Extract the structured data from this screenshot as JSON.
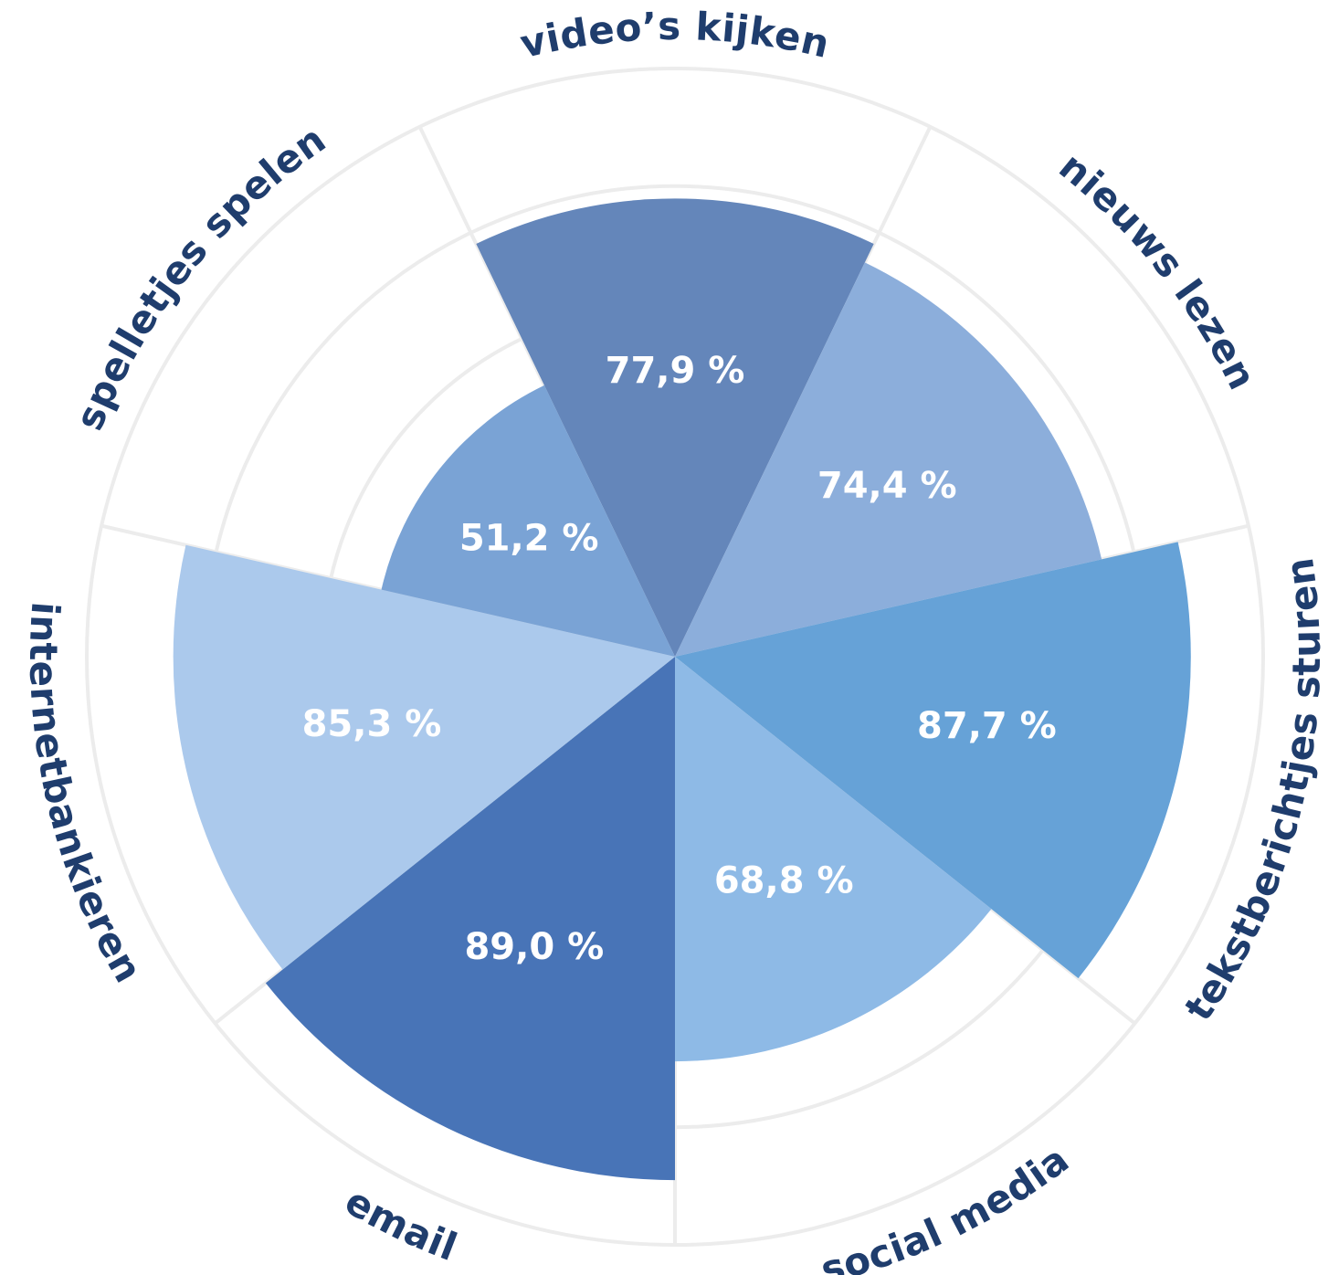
{
  "chart_data": {
    "type": "polar-area",
    "title": "",
    "value_suffix": " %",
    "decimal_separator": ",",
    "rlim": [
      0,
      100
    ],
    "grid": true,
    "categories": [
      "video’s kijken",
      "nieuws lezen",
      "tekstberichtjes sturen",
      "social media",
      "email",
      "internetbankieren",
      "spelletjes spelen"
    ],
    "values": [
      77.9,
      74.4,
      87.7,
      68.8,
      89.0,
      85.3,
      51.2
    ],
    "value_labels": [
      "77,9 %",
      "74,4 %",
      "87,7 %",
      "68,8 %",
      "89,0 %",
      "85,3 %",
      "51,2 %"
    ],
    "colors": [
      "#6486ba",
      "#8caedb",
      "#66a2d7",
      "#8ebae6",
      "#4874b7",
      "#abc9ec",
      "#7aa3d5"
    ],
    "label_color": "#1f3d6d",
    "grid_color": "#ececec"
  }
}
